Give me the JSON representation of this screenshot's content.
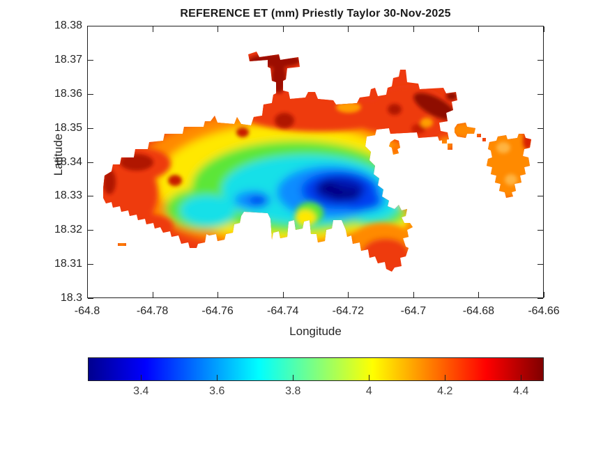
{
  "figure": {
    "title": "REFERENCE ET (mm) Priestly Taylor 30-Nov-2025"
  },
  "chart_data": {
    "type": "heatmap",
    "subtype": "filled-contour-map",
    "title": "REFERENCE ET (mm) Priestly Taylor 30-Nov-2025",
    "xlabel": "Longitude",
    "ylabel": "Latitude",
    "xlim": [
      -64.8,
      -64.66
    ],
    "ylim": [
      18.3,
      18.38
    ],
    "grid": false,
    "x_ticks": [
      {
        "v": -64.8,
        "label": "-64.8"
      },
      {
        "v": -64.78,
        "label": "-64.78"
      },
      {
        "v": -64.76,
        "label": "-64.76"
      },
      {
        "v": -64.74,
        "label": "-64.74"
      },
      {
        "v": -64.72,
        "label": "-64.72"
      },
      {
        "v": -64.7,
        "label": "-64.7"
      },
      {
        "v": -64.68,
        "label": "-64.68"
      },
      {
        "v": -64.66,
        "label": "-64.66"
      }
    ],
    "y_ticks": [
      {
        "v": 18.3,
        "label": "18.3"
      },
      {
        "v": 18.31,
        "label": "18.31"
      },
      {
        "v": 18.32,
        "label": "18.32"
      },
      {
        "v": 18.33,
        "label": "18.33"
      },
      {
        "v": 18.34,
        "label": "18.34"
      },
      {
        "v": 18.35,
        "label": "18.35"
      },
      {
        "v": 18.36,
        "label": "18.36"
      },
      {
        "v": 18.37,
        "label": "18.37"
      },
      {
        "v": 18.38,
        "label": "18.38"
      }
    ],
    "colorbar": {
      "orientation": "horizontal",
      "min": 3.26,
      "max": 4.46,
      "ticks": [
        {
          "v": 3.4,
          "label": "3.4"
        },
        {
          "v": 3.6,
          "label": "3.6"
        },
        {
          "v": 3.8,
          "label": "3.8"
        },
        {
          "v": 4.0,
          "label": "4"
        },
        {
          "v": 4.2,
          "label": "4.2"
        },
        {
          "v": 4.4,
          "label": "4.4"
        }
      ],
      "colormap": "jet",
      "stops": [
        [
          0,
          "#00008f"
        ],
        [
          0.125,
          "#0000ff"
        ],
        [
          0.375,
          "#00ffff"
        ],
        [
          0.625,
          "#ffff00"
        ],
        [
          0.875,
          "#ff0000"
        ],
        [
          1,
          "#800000"
        ]
      ]
    },
    "features": {
      "description": "Reference evapotranspiration raster clipped to island land mask (St. Thomas-like shape); values in mm",
      "primary_minimum": {
        "value_mm": 3.3,
        "lon": -64.722,
        "lat": 18.332
      },
      "secondary_minimum": {
        "value_mm": 3.5,
        "lon": -64.747,
        "lat": 18.33
      },
      "maxima": {
        "value_mm": 4.45,
        "where": "north coast peninsula, northwest coast and northeast ridge (dark red)"
      },
      "south_lobe": {
        "value_mm": 4.3,
        "lon": -64.71,
        "lat": 18.315
      },
      "eastern_islets": {
        "value_mm": 4.2,
        "where": "orange patches along eastern chain toward -64.66"
      }
    }
  }
}
